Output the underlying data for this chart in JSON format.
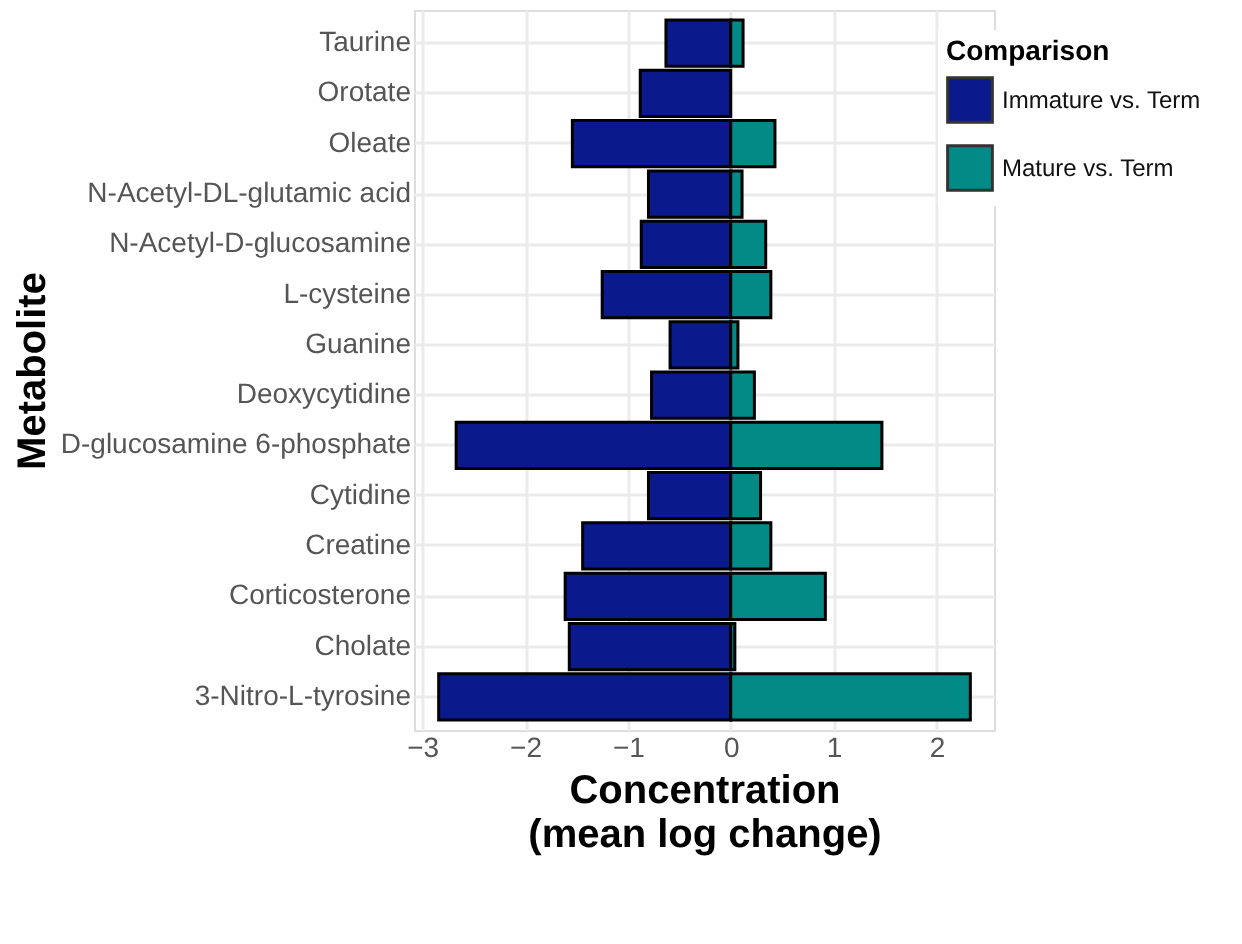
{
  "chart_data": {
    "type": "bar",
    "orientation": "horizontal",
    "stacked": true,
    "xlabel": "Concentration\n(mean log change)",
    "ylabel": "Metabolite",
    "legend_title": "Comparison",
    "legend": "top right",
    "grid": true,
    "categories": [
      "Taurine",
      "Orotate",
      "Oleate",
      "N-Acetyl-DL-glutamic acid",
      "N-Acetyl-D-glucosamine",
      "L-cysteine",
      "Guanine",
      "Deoxycytidine",
      "D-glucosamine 6-phosphate",
      "Cytidine",
      "Creatine",
      "Corticosterone",
      "Cholate",
      "3-Nitro-L-tyrosine"
    ],
    "series": [
      {
        "name": "Immature vs. Term",
        "color": "#0a1a8c",
        "values": [
          -0.63,
          -0.88,
          -1.54,
          -0.8,
          -0.87,
          -1.25,
          -0.59,
          -0.77,
          -2.67,
          -0.8,
          -1.44,
          -1.61,
          -1.57,
          -2.84
        ]
      },
      {
        "name": "Mature vs. Term",
        "color": "#028a87",
        "values": [
          0.12,
          null,
          0.43,
          0.11,
          0.34,
          0.39,
          0.07,
          0.23,
          1.47,
          0.29,
          0.39,
          0.92,
          0.04,
          2.33
        ]
      }
    ],
    "xlim": [
      -3.08,
      2.56
    ],
    "xticks": [
      -3,
      -2,
      -1,
      0,
      1,
      2
    ]
  }
}
